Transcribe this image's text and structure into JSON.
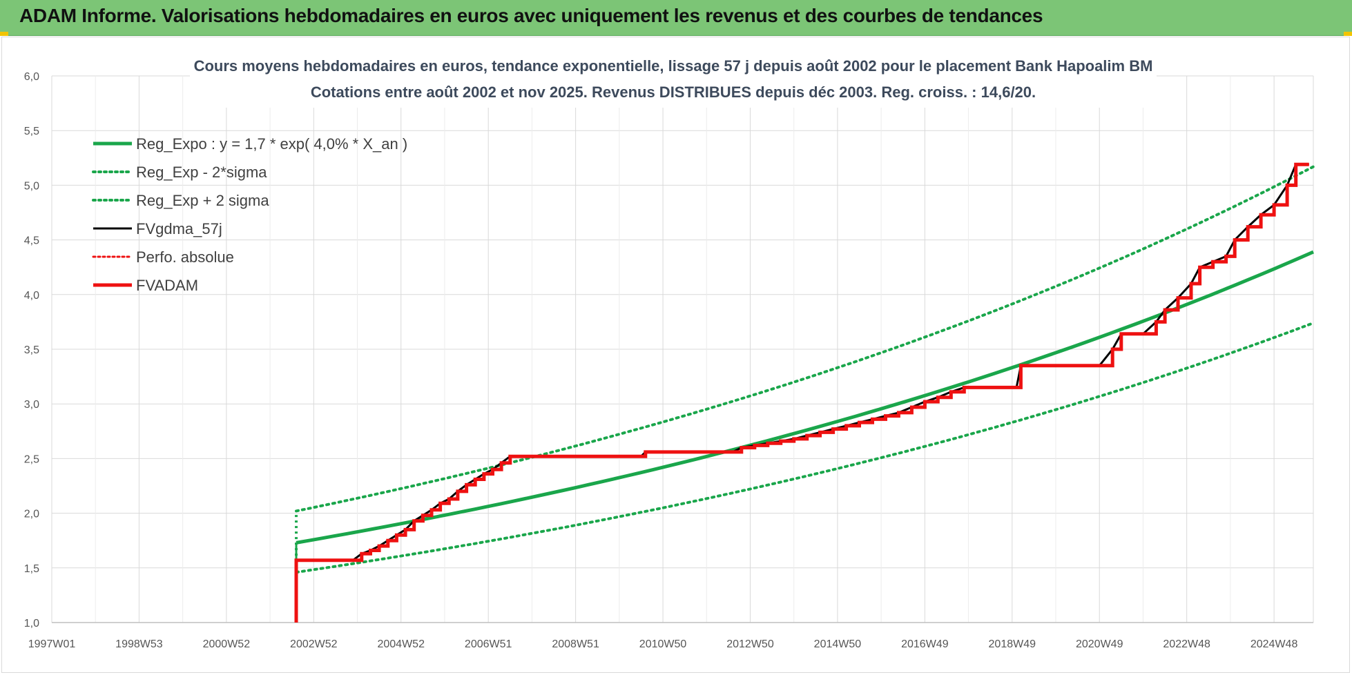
{
  "banner": {
    "title": "ADAM Informe. Valorisations hebdomadaires en euros avec uniquement les revenus et des courbes de tendances"
  },
  "colors": {
    "banner_bg": "#7cc576",
    "green": "#1aa64b",
    "dotted_green": "#1aa64b",
    "black": "#000000",
    "red": "#ee1111",
    "grid": "#d9d9d9"
  },
  "chart_data": {
    "type": "line",
    "title_lines": [
      "Cours moyens hebdomadaires en euros, tendance exponentielle, lissage 57 j depuis août 2002 pour le placement Bank Hapoalim BM",
      "Cotations entre août 2002 et nov 2025.  Revenus DISTRIBUES depuis déc 2003. Reg. croiss. : 14,6/20."
    ],
    "x_tick_labels": [
      "1997W01",
      "1998W53",
      "2000W52",
      "2002W52",
      "2004W52",
      "2006W51",
      "2008W51",
      "2010W50",
      "2012W50",
      "2014W50",
      "2016W49",
      "2018W49",
      "2020W49",
      "2022W48",
      "2024W48"
    ],
    "xlim": [
      1997.0,
      2025.9
    ],
    "ylim": [
      1.0,
      6.0
    ],
    "y_ticks": [
      "1,0",
      "1,5",
      "2,0",
      "2,5",
      "3,0",
      "3,5",
      "4,0",
      "4,5",
      "5,0",
      "5,5",
      "6,0"
    ],
    "y_tick_values": [
      1.0,
      1.5,
      2.0,
      2.5,
      3.0,
      3.5,
      4.0,
      4.5,
      5.0,
      5.5,
      6.0
    ],
    "grid": true,
    "legend_position": "top-left",
    "legend": [
      {
        "key": "reg_expo",
        "label": "Reg_Expo : y = 1,7 * exp( 4,0% *  X_an )",
        "style": "solid-thick",
        "color": "#1aa64b"
      },
      {
        "key": "reg_minus",
        "label": "Reg_Exp - 2*sigma",
        "style": "dotted",
        "color": "#1aa64b"
      },
      {
        "key": "reg_plus",
        "label": "Reg_Exp + 2 sigma",
        "style": "dotted",
        "color": "#1aa64b"
      },
      {
        "key": "fvgdma",
        "label": "FVgdma_57j",
        "style": "solid",
        "color": "#000000"
      },
      {
        "key": "perfo",
        "label": "Perfo. absolue",
        "style": "dotted",
        "color": "#ee1111"
      },
      {
        "key": "fvadam",
        "label": "FVADAM",
        "style": "solid-thick",
        "color": "#ee1111"
      }
    ],
    "series": {
      "reg_expo": {
        "x": [
          2002.6,
          2025.9
        ],
        "y": [
          1.73,
          4.39
        ]
      },
      "reg_minus": {
        "x": [
          2002.6,
          2025.9
        ],
        "y": [
          1.46,
          3.74
        ]
      },
      "reg_plus": {
        "x": [
          2002.6,
          2025.9
        ],
        "y": [
          2.02,
          5.17
        ]
      },
      "fvadam_steps": [
        [
          2002.6,
          1.0
        ],
        [
          2002.6,
          1.57
        ],
        [
          2003.9,
          1.57
        ],
        [
          2004.1,
          1.63
        ],
        [
          2004.3,
          1.66
        ],
        [
          2004.5,
          1.7
        ],
        [
          2004.7,
          1.75
        ],
        [
          2004.9,
          1.8
        ],
        [
          2005.1,
          1.85
        ],
        [
          2005.3,
          1.93
        ],
        [
          2005.5,
          1.98
        ],
        [
          2005.7,
          2.03
        ],
        [
          2005.9,
          2.09
        ],
        [
          2006.1,
          2.13
        ],
        [
          2006.3,
          2.2
        ],
        [
          2006.5,
          2.26
        ],
        [
          2006.7,
          2.31
        ],
        [
          2006.9,
          2.36
        ],
        [
          2007.1,
          2.4
        ],
        [
          2007.3,
          2.46
        ],
        [
          2007.5,
          2.52
        ],
        [
          2010.5,
          2.52
        ],
        [
          2010.6,
          2.56
        ],
        [
          2012.6,
          2.56
        ],
        [
          2012.8,
          2.6
        ],
        [
          2013.1,
          2.62
        ],
        [
          2013.4,
          2.64
        ],
        [
          2013.7,
          2.66
        ],
        [
          2014.0,
          2.68
        ],
        [
          2014.3,
          2.71
        ],
        [
          2014.6,
          2.74
        ],
        [
          2014.9,
          2.77
        ],
        [
          2015.2,
          2.8
        ],
        [
          2015.5,
          2.83
        ],
        [
          2015.8,
          2.86
        ],
        [
          2016.1,
          2.89
        ],
        [
          2016.4,
          2.92
        ],
        [
          2016.7,
          2.97
        ],
        [
          2017.0,
          3.02
        ],
        [
          2017.3,
          3.06
        ],
        [
          2017.6,
          3.11
        ],
        [
          2017.9,
          3.15
        ],
        [
          2019.1,
          3.15
        ],
        [
          2019.2,
          3.35
        ],
        [
          2021.0,
          3.35
        ],
        [
          2021.3,
          3.5
        ],
        [
          2021.5,
          3.64
        ],
        [
          2022.0,
          3.64
        ],
        [
          2022.3,
          3.75
        ],
        [
          2022.5,
          3.86
        ],
        [
          2022.8,
          3.97
        ],
        [
          2023.1,
          4.1
        ],
        [
          2023.3,
          4.25
        ],
        [
          2023.6,
          4.3
        ],
        [
          2023.9,
          4.35
        ],
        [
          2024.1,
          4.5
        ],
        [
          2024.4,
          4.62
        ],
        [
          2024.7,
          4.73
        ],
        [
          2025.0,
          4.82
        ],
        [
          2025.3,
          5.0
        ],
        [
          2025.5,
          5.19
        ],
        [
          2025.8,
          5.19
        ]
      ]
    }
  }
}
